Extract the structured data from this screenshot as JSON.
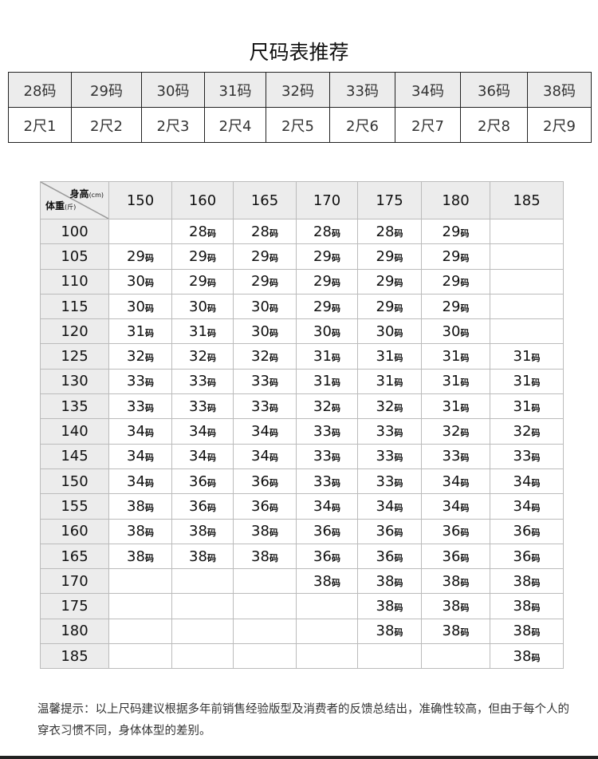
{
  "title": "尺码表推荐",
  "size_table": {
    "sizes": [
      "28码",
      "29码",
      "30码",
      "31码",
      "32码",
      "33码",
      "34码",
      "36码",
      "38码"
    ],
    "waists": [
      "2尺1",
      "2尺2",
      "2尺3",
      "2尺4",
      "2尺5",
      "2尺6",
      "2尺7",
      "2尺8",
      "2尺9"
    ]
  },
  "recommend_table": {
    "height_label": "身高",
    "height_unit": "(cm)",
    "weight_label": "体重",
    "weight_unit": "(斤)",
    "heights": [
      "150",
      "160",
      "165",
      "170",
      "175",
      "180",
      "185"
    ],
    "unit": "码",
    "rows": [
      {
        "weight": "100",
        "cells": [
          "",
          "28",
          "28",
          "28",
          "28",
          "29",
          ""
        ]
      },
      {
        "weight": "105",
        "cells": [
          "29",
          "29",
          "29",
          "29",
          "29",
          "29",
          ""
        ]
      },
      {
        "weight": "110",
        "cells": [
          "30",
          "29",
          "29",
          "29",
          "29",
          "29",
          ""
        ]
      },
      {
        "weight": "115",
        "cells": [
          "30",
          "30",
          "30",
          "29",
          "29",
          "29",
          ""
        ]
      },
      {
        "weight": "120",
        "cells": [
          "31",
          "31",
          "30",
          "30",
          "30",
          "30",
          ""
        ]
      },
      {
        "weight": "125",
        "cells": [
          "32",
          "32",
          "32",
          "31",
          "31",
          "31",
          "31"
        ]
      },
      {
        "weight": "130",
        "cells": [
          "33",
          "33",
          "33",
          "31",
          "31",
          "31",
          "31"
        ]
      },
      {
        "weight": "135",
        "cells": [
          "33",
          "33",
          "33",
          "32",
          "32",
          "31",
          "31"
        ]
      },
      {
        "weight": "140",
        "cells": [
          "34",
          "34",
          "34",
          "33",
          "33",
          "32",
          "32"
        ]
      },
      {
        "weight": "145",
        "cells": [
          "34",
          "34",
          "34",
          "33",
          "33",
          "33",
          "33"
        ]
      },
      {
        "weight": "150",
        "cells": [
          "34",
          "36",
          "36",
          "33",
          "33",
          "34",
          "34"
        ]
      },
      {
        "weight": "155",
        "cells": [
          "38",
          "36",
          "36",
          "34",
          "34",
          "34",
          "34"
        ]
      },
      {
        "weight": "160",
        "cells": [
          "38",
          "38",
          "38",
          "36",
          "36",
          "36",
          "36"
        ]
      },
      {
        "weight": "165",
        "cells": [
          "38",
          "38",
          "38",
          "36",
          "36",
          "36",
          "36"
        ]
      },
      {
        "weight": "170",
        "cells": [
          "",
          "",
          "",
          "38",
          "38",
          "38",
          "38"
        ]
      },
      {
        "weight": "175",
        "cells": [
          "",
          "",
          "",
          "",
          "38",
          "38",
          "38"
        ]
      },
      {
        "weight": "180",
        "cells": [
          "",
          "",
          "",
          "",
          "38",
          "38",
          "38"
        ]
      },
      {
        "weight": "185",
        "cells": [
          "",
          "",
          "",
          "",
          "",
          "",
          "38"
        ]
      }
    ]
  },
  "note": "温馨提示：以上尺码建议根据多年前销售经验版型及消费者的反馈总结出，准确性较高，但由于每个人的穿衣习惯不同，身体体型的差别。"
}
